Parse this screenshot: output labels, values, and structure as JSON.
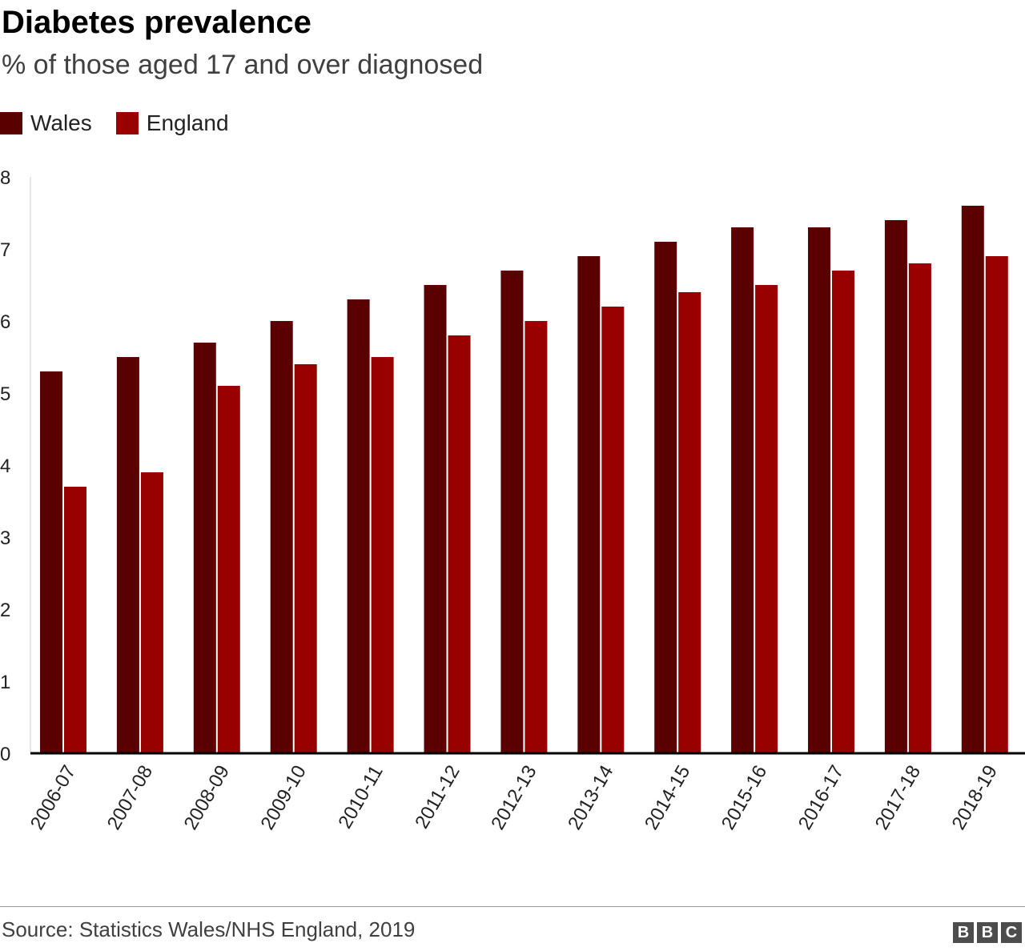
{
  "chart_data": {
    "type": "bar",
    "title": "Diabetes prevalence",
    "subtitle": "% of those aged 17 and over diagnosed",
    "categories": [
      "2006-07",
      "2007-08",
      "2008-09",
      "2009-10",
      "2010-11",
      "2011-12",
      "2012-13",
      "2013-14",
      "2014-15",
      "2015-16",
      "2016-17",
      "2017-18",
      "2018-19"
    ],
    "series": [
      {
        "name": "Wales",
        "color": "#5a0000",
        "values": [
          5.3,
          5.5,
          5.7,
          6.0,
          6.3,
          6.5,
          6.7,
          6.9,
          7.1,
          7.3,
          7.3,
          7.4,
          7.6
        ]
      },
      {
        "name": "England",
        "color": "#990000",
        "values": [
          3.7,
          3.9,
          5.1,
          5.4,
          5.5,
          5.8,
          6.0,
          6.2,
          6.4,
          6.5,
          6.7,
          6.8,
          6.9
        ]
      }
    ],
    "ylim": [
      0,
      8
    ],
    "yticks": [
      "0",
      "1",
      "2",
      "3",
      "4",
      "5",
      "6",
      "7",
      "8"
    ],
    "grid": false,
    "legend": "top-left",
    "source": "Source: Statistics Wales/NHS England, 2019"
  },
  "logo": "BBC"
}
